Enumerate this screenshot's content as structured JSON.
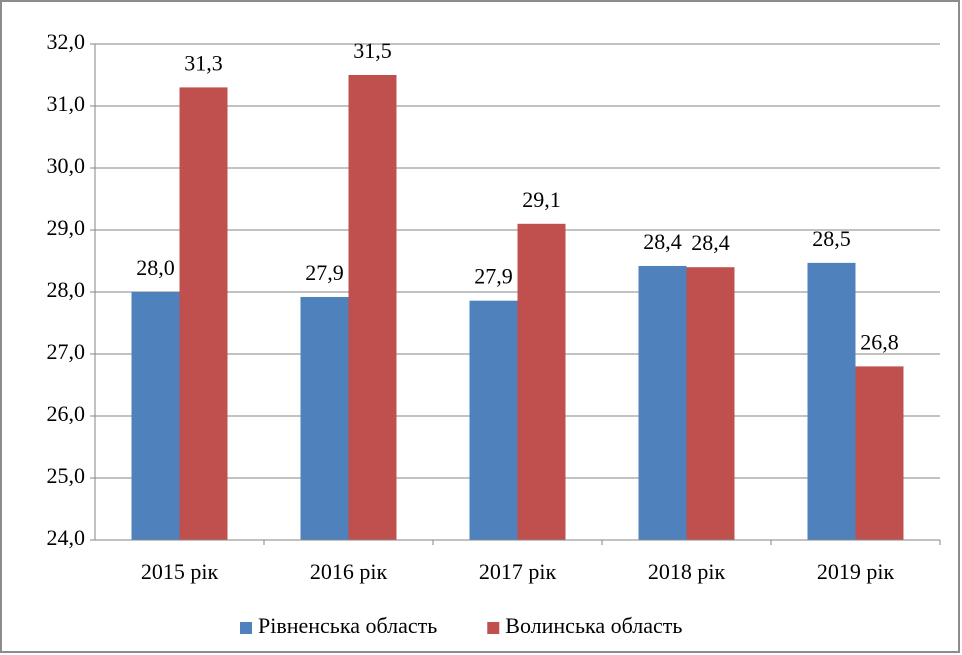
{
  "chart_data": {
    "type": "bar",
    "categories": [
      "2015 рік",
      "2016 рік",
      "2017 рік",
      "2018 рік",
      "2019 рік"
    ],
    "series": [
      {
        "name": "Рівненська область",
        "color": "#4f81bd",
        "values": [
          28.0,
          27.92,
          27.86,
          28.42,
          28.47
        ],
        "value_labels": [
          "28,0",
          "27,9",
          "27,9",
          "28,4",
          "28,5"
        ]
      },
      {
        "name": "Волинська область",
        "color": "#c0504d",
        "values": [
          31.3,
          31.5,
          29.1,
          28.4,
          26.8
        ],
        "value_labels": [
          "31,3",
          "31,5",
          "29,1",
          "28,4",
          "26,8"
        ]
      }
    ],
    "ylim": [
      24,
      32
    ],
    "yticks": [
      {
        "value": 24,
        "label": "24,0"
      },
      {
        "value": 25,
        "label": "25,0"
      },
      {
        "value": 26,
        "label": "26,0"
      },
      {
        "value": 27,
        "label": "27,0"
      },
      {
        "value": 28,
        "label": "28,0"
      },
      {
        "value": 29,
        "label": "29,0"
      },
      {
        "value": 30,
        "label": "30,0"
      },
      {
        "value": 31,
        "label": "31,0"
      },
      {
        "value": 32,
        "label": "32,0"
      }
    ],
    "grid": true,
    "legend": "bottom"
  }
}
